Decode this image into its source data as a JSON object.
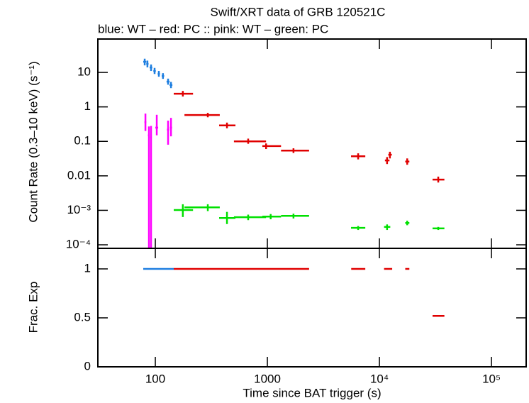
{
  "chart_data": [
    {
      "type": "errorbar",
      "title": "Swift/XRT data of GRB 120521C",
      "subtitle": "blue: WT  – red: PC  :: pink: WT  – green: PC",
      "y_label": "Count Rate (0.3–10 keV) (s⁻¹)",
      "log_x": true,
      "log_y": true,
      "xlim": [
        30.7,
        204000
      ],
      "ylim": [
        7.9e-05,
        93
      ],
      "xticks": [
        100,
        1000,
        10000,
        100000
      ],
      "yticks": [
        {
          "value": 0.0001,
          "label": "10⁻⁴"
        },
        {
          "value": 0.001,
          "label": "10⁻³"
        },
        0.01,
        0.1,
        1,
        10
      ],
      "series": [
        {
          "color": "#1f7fe0",
          "x": [
            80.4,
            85,
            91.6,
            98.5,
            107.5,
            117,
            130,
            138
          ],
          "xmin": [
            78,
            83,
            89,
            96,
            105,
            114,
            126,
            134
          ],
          "xmax": [
            83,
            87,
            94,
            101,
            110,
            120,
            134,
            142
          ],
          "values": [
            20.4,
            17.7,
            13.9,
            11,
            9.1,
            7.9,
            5.4,
            4.3
          ],
          "ymin": [
            16,
            14,
            11,
            9,
            7.5,
            6.5,
            4.4,
            3.5
          ],
          "ymax": [
            25,
            22,
            17,
            13.5,
            11,
            9.5,
            6.6,
            5.3
          ]
        },
        {
          "color": "#ff00ff",
          "x": [
            81.6,
            87.7,
            91.6,
            103,
            130,
            138
          ],
          "xmin": [
            80,
            86,
            90,
            100,
            127,
            135
          ],
          "xmax": [
            83,
            89,
            93,
            106,
            133,
            141
          ],
          "values": [
            0.36,
            0.15,
            0.13,
            0.25,
            0.22,
            0.25
          ],
          "ymin": [
            0.2,
            0,
            0,
            0.15,
            0.08,
            0.14
          ],
          "ymax": [
            0.64,
            0.27,
            0.28,
            0.59,
            0.4,
            0.48
          ]
        },
        {
          "color": "#e00000",
          "x": [
            176,
            294,
            436,
            674,
            974,
            1710,
            6460,
            11700,
            12400,
            17700,
            33500
          ],
          "xmin": [
            146,
            182,
            371,
            503,
            902,
            1324,
            5580,
            11200,
            12000,
            17000,
            29800
          ],
          "xmax": [
            217,
            376,
            519,
            973,
            1324,
            2357,
            7480,
            12300,
            12900,
            18500,
            38000
          ],
          "values": [
            2.41,
            0.58,
            0.29,
            0.1,
            0.073,
            0.054,
            0.037,
            0.028,
            0.041,
            0.026,
            0.0078
          ],
          "ymin": [
            2.0,
            0.5,
            0.24,
            0.085,
            0.06,
            0.046,
            0.03,
            0.022,
            0.032,
            0.021,
            0.0064
          ],
          "ymax": [
            2.9,
            0.67,
            0.35,
            0.12,
            0.087,
            0.063,
            0.045,
            0.035,
            0.05,
            0.032,
            0.0095
          ]
        },
        {
          "color": "#00e000",
          "x": [
            176,
            294,
            436,
            674,
            1070,
            1710,
            6460,
            11700,
            17700,
            33500
          ],
          "xmin": [
            146,
            182,
            371,
            503,
            902,
            1324,
            5580,
            11000,
            17000,
            29800
          ],
          "xmax": [
            217,
            376,
            519,
            973,
            1324,
            2357,
            7480,
            12500,
            18500,
            38000
          ],
          "values": [
            0.00102,
            0.00122,
            0.0006,
            0.00063,
            0.00066,
            0.00069,
            0.00031,
            0.00033,
            0.00043,
            0.0003
          ],
          "ymin": [
            0.00064,
            0.00095,
            0.0004,
            0.00052,
            0.00055,
            0.00058,
            0.00027,
            0.00027,
            0.00037,
            0.00027
          ],
          "ymax": [
            0.0015,
            0.0015,
            0.0009,
            0.00075,
            0.00078,
            0.0008,
            0.00035,
            0.00039,
            0.0005,
            0.00033
          ]
        }
      ]
    },
    {
      "type": "errorbar",
      "x_label": "Time since BAT trigger (s)",
      "y_label": "Frac. Exp",
      "log_x": true,
      "log_y": false,
      "xlim": [
        30.7,
        204000
      ],
      "ylim": [
        0,
        1.21
      ],
      "xticks": [
        100,
        1000,
        {
          "value": 10000,
          "label": "10⁴"
        },
        {
          "value": 100000,
          "label": "10⁵"
        }
      ],
      "yticks": [
        0,
        0.5,
        1
      ],
      "series": [
        {
          "color": "#1f7fe0",
          "xmin": [
            78
          ],
          "xmax": [
            146
          ],
          "values": [
            1
          ]
        },
        {
          "color": "#e00000",
          "xmin": [
            146,
            5600,
            11000,
            17000,
            29800
          ],
          "xmax": [
            2357,
            7480,
            13000,
            18500,
            38000
          ],
          "values": [
            1,
            1,
            1,
            1,
            0.52
          ]
        }
      ]
    }
  ]
}
